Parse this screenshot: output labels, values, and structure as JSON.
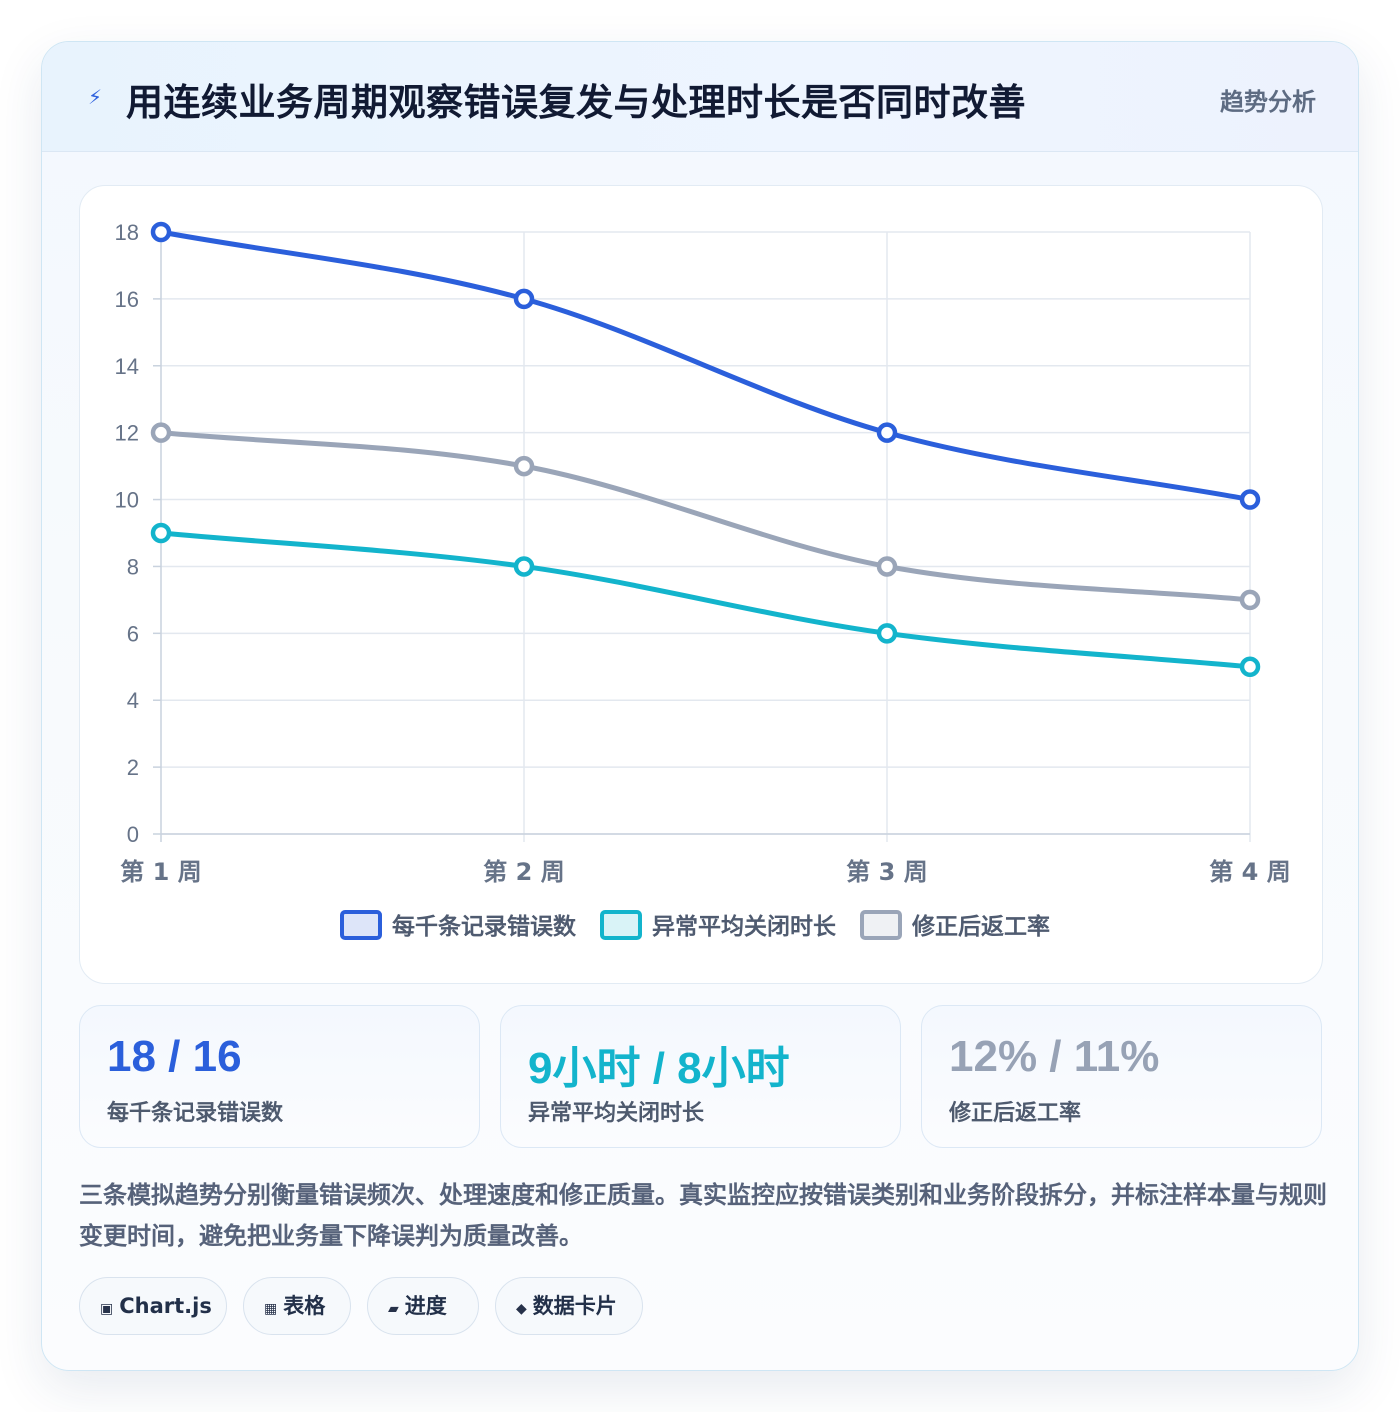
{
  "header": {
    "icon": "bolt-icon",
    "title": "用连续业务周期观察错误复发与处理时长是否同时改善",
    "tag": "趋势分析"
  },
  "chart_data": {
    "type": "line",
    "categories": [
      "第 1 周",
      "第 2 周",
      "第 3 周",
      "第 4 周"
    ],
    "series": [
      {
        "name": "每千条记录错误数",
        "values": [
          18,
          16,
          12,
          10
        ],
        "color": "#2b5fdb"
      },
      {
        "name": "异常平均关闭时长",
        "values": [
          9,
          8,
          6,
          5
        ],
        "color": "#13b4cc"
      },
      {
        "name": "修正后返工率",
        "values": [
          12,
          11,
          8,
          7
        ],
        "color": "#9aa5b8"
      }
    ],
    "ylim": [
      0,
      18
    ],
    "yticks": [
      0,
      2,
      4,
      6,
      8,
      10,
      12,
      14,
      16,
      18
    ],
    "grid": true,
    "legend_position": "bottom"
  },
  "stats": [
    {
      "value": "18 / 16",
      "label": "每千条记录错误数",
      "color": "#2b5fdb"
    },
    {
      "value": "9小时 / 8小时",
      "label": "异常平均关闭时长",
      "color": "#13b4cc"
    },
    {
      "value": "12% / 11%",
      "label": "修正后返工率",
      "color": "#97a2b5"
    }
  ],
  "description": "三条模拟趋势分别衡量错误频次、处理速度和修正质量。真实监控应按错误类别和业务阶段拆分，并标注样本量与规则变更时间，避免把业务量下降误判为质量改善。",
  "chips": [
    {
      "icon": "square-icon",
      "glyph": "▣",
      "label": "Chart.js"
    },
    {
      "icon": "table-icon",
      "glyph": "▦",
      "label": "表格"
    },
    {
      "icon": "progress-icon",
      "glyph": "▰",
      "label": "进度"
    },
    {
      "icon": "diamond-icon",
      "glyph": "◆",
      "label": "数据卡片"
    }
  ]
}
